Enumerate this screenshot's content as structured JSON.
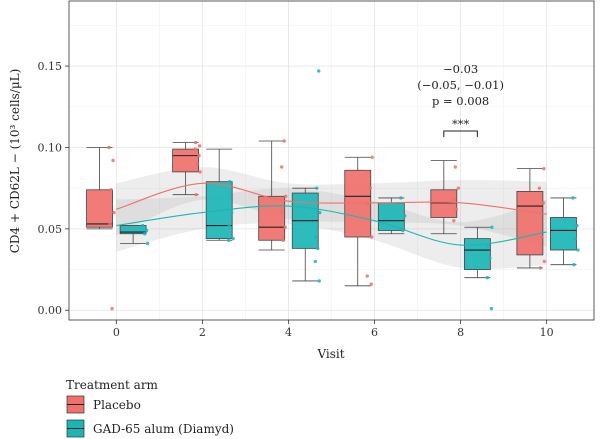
{
  "chart_data": {
    "type": "box",
    "xlabel": "Visit",
    "ylabel": "CD4 + CD62L − (10³ cells/μL)",
    "x_ticks": [
      "0",
      "2",
      "4",
      "6",
      "8",
      "10"
    ],
    "y_ticks": [
      "0.00",
      "0.05",
      "0.10",
      "0.15"
    ],
    "xlim": [
      -1.1,
      11.1
    ],
    "ylim": [
      -0.006,
      0.19
    ],
    "grid": true,
    "legend": {
      "title": "Treatment arm",
      "placement": "bottom-left"
    },
    "series": [
      {
        "name": "Placebo",
        "color": "#F0706B",
        "boxes": [
          {
            "x": 0,
            "q1": 0.051,
            "median": 0.053,
            "q3": 0.074,
            "whisker_low": 0.05,
            "whisker_high": 0.1
          },
          {
            "x": 2,
            "q1": 0.085,
            "median": 0.095,
            "q3": 0.099,
            "whisker_low": 0.071,
            "whisker_high": 0.103
          },
          {
            "x": 4,
            "q1": 0.043,
            "median": 0.051,
            "q3": 0.07,
            "whisker_low": 0.037,
            "whisker_high": 0.104
          },
          {
            "x": 6,
            "q1": 0.045,
            "median": 0.07,
            "q3": 0.086,
            "whisker_low": 0.015,
            "whisker_high": 0.094
          },
          {
            "x": 8,
            "q1": 0.057,
            "median": 0.066,
            "q3": 0.074,
            "whisker_low": 0.047,
            "whisker_high": 0.092
          },
          {
            "x": 10,
            "q1": 0.034,
            "median": 0.064,
            "q3": 0.073,
            "whisker_low": 0.026,
            "whisker_high": 0.087
          }
        ],
        "points": [
          [
            0,
            0.1
          ],
          [
            0,
            0.092
          ],
          [
            0,
            0.074
          ],
          [
            0,
            0.06
          ],
          [
            0,
            0.053
          ],
          [
            0,
            0.001
          ],
          [
            2,
            0.103
          ],
          [
            2,
            0.101
          ],
          [
            2,
            0.099
          ],
          [
            2,
            0.095
          ],
          [
            2,
            0.09
          ],
          [
            2,
            0.085
          ],
          [
            2,
            0.071
          ],
          [
            4,
            0.104
          ],
          [
            4,
            0.088
          ],
          [
            4,
            0.07
          ],
          [
            4,
            0.06
          ],
          [
            4,
            0.051
          ],
          [
            4,
            0.043
          ],
          [
            6,
            0.094
          ],
          [
            6,
            0.085
          ],
          [
            6,
            0.075
          ],
          [
            6,
            0.065
          ],
          [
            6,
            0.045
          ],
          [
            6,
            0.021
          ],
          [
            6,
            0.016
          ],
          [
            8,
            0.088
          ],
          [
            8,
            0.075
          ],
          [
            8,
            0.068
          ],
          [
            8,
            0.062
          ],
          [
            8,
            0.055
          ],
          [
            10,
            0.087
          ],
          [
            10,
            0.075
          ],
          [
            10,
            0.066
          ],
          [
            10,
            0.045
          ],
          [
            10,
            0.03
          ],
          [
            10,
            0.026
          ]
        ],
        "trend": [
          [
            0,
            0.062
          ],
          [
            2,
            0.078
          ],
          [
            4,
            0.067
          ],
          [
            6,
            0.066
          ],
          [
            8,
            0.066
          ],
          [
            10,
            0.059
          ]
        ]
      },
      {
        "name": "GAD-65 alum (Diamyd)",
        "color": "#1CB5B5",
        "boxes": [
          {
            "x": 0,
            "q1": 0.047,
            "median": 0.048,
            "q3": 0.052,
            "whisker_low": 0.041,
            "whisker_high": 0.052
          },
          {
            "x": 2,
            "q1": 0.044,
            "median": 0.052,
            "q3": 0.079,
            "whisker_low": 0.043,
            "whisker_high": 0.099
          },
          {
            "x": 4,
            "q1": 0.038,
            "median": 0.055,
            "q3": 0.072,
            "whisker_low": 0.018,
            "whisker_high": 0.075
          },
          {
            "x": 6,
            "q1": 0.049,
            "median": 0.055,
            "q3": 0.066,
            "whisker_low": 0.047,
            "whisker_high": 0.069
          },
          {
            "x": 8,
            "q1": 0.025,
            "median": 0.037,
            "q3": 0.044,
            "whisker_low": 0.02,
            "whisker_high": 0.051
          },
          {
            "x": 10,
            "q1": 0.037,
            "median": 0.049,
            "q3": 0.057,
            "whisker_low": 0.028,
            "whisker_high": 0.069
          }
        ],
        "points": [
          [
            0,
            0.052
          ],
          [
            0,
            0.049
          ],
          [
            0,
            0.047
          ],
          [
            0,
            0.041
          ],
          [
            2,
            0.079
          ],
          [
            2,
            0.06
          ],
          [
            2,
            0.052
          ],
          [
            2,
            0.044
          ],
          [
            2,
            0.043
          ],
          [
            4,
            0.147
          ],
          [
            4,
            0.075
          ],
          [
            4,
            0.06
          ],
          [
            4,
            0.045
          ],
          [
            4,
            0.038
          ],
          [
            4,
            0.03
          ],
          [
            4,
            0.018
          ],
          [
            6,
            0.069
          ],
          [
            6,
            0.058
          ],
          [
            6,
            0.049
          ],
          [
            8,
            0.051
          ],
          [
            8,
            0.04
          ],
          [
            8,
            0.032
          ],
          [
            8,
            0.02
          ],
          [
            8,
            0.001
          ],
          [
            10,
            0.069
          ],
          [
            10,
            0.052
          ],
          [
            10,
            0.044
          ],
          [
            10,
            0.037
          ],
          [
            10,
            0.028
          ]
        ],
        "trend": [
          [
            0,
            0.052
          ],
          [
            2,
            0.06
          ],
          [
            4,
            0.064
          ],
          [
            6,
            0.055
          ],
          [
            8,
            0.04
          ],
          [
            10,
            0.048
          ]
        ]
      }
    ],
    "annotation": {
      "x": 8,
      "lines": [
        "−0.03",
        "(−0.05, −0.01)",
        "p = 0.008"
      ],
      "significance": "***"
    }
  }
}
